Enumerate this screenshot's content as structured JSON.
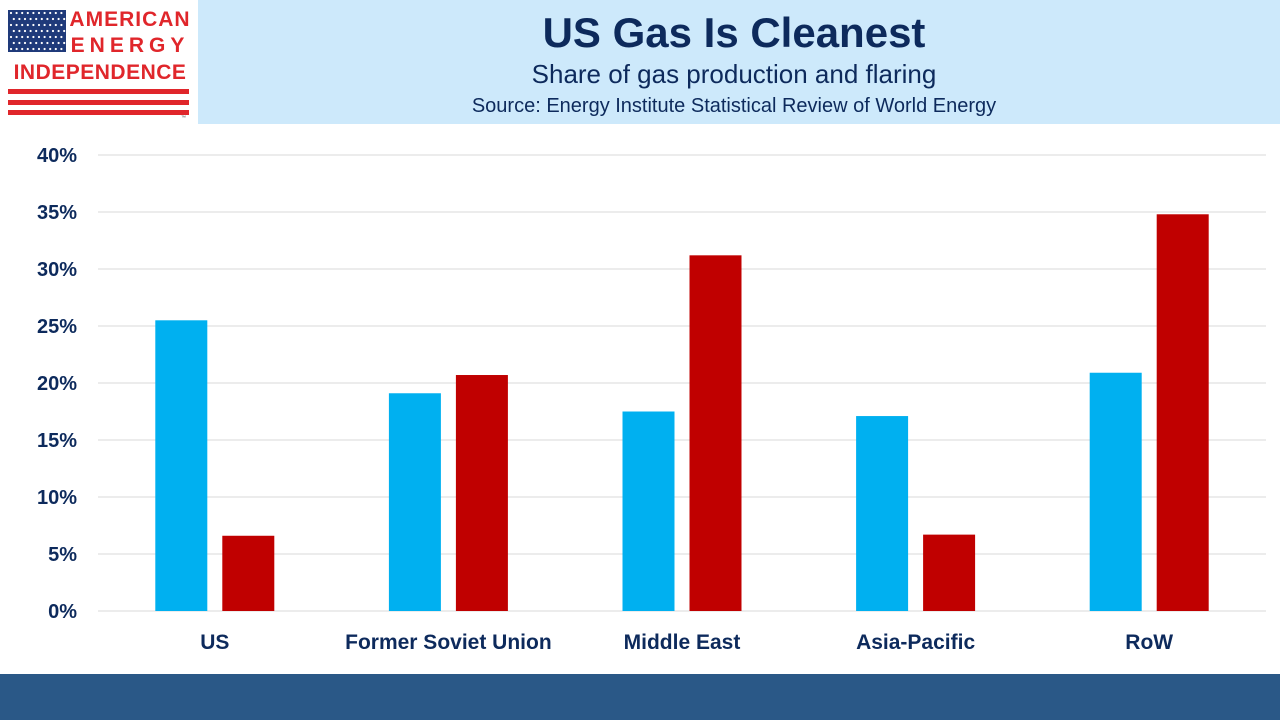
{
  "logo": {
    "line1": "AMERICAN",
    "line2": "ENERGY",
    "line3": "INDEPENDENCE",
    "trademark": "™"
  },
  "header": {
    "title": "US Gas Is Cleanest",
    "subtitle": "Share of gas production and flaring",
    "source": "Source: Energy Institute Statistical Review of World Energy"
  },
  "colors": {
    "header_bg": "#cde9fb",
    "title_text": "#0d2a5c",
    "logo_red": "#e0262b",
    "logo_navy": "#1f3a7a",
    "footer_bg": "#2a5887",
    "series_production": "#00b0f0",
    "series_flaring": "#c00000",
    "gridline": "#d9d9d9"
  },
  "chart_data": {
    "type": "bar",
    "title": "US Gas Is Cleanest",
    "subtitle": "Share of gas production and flaring",
    "xlabel": "",
    "ylabel": "",
    "categories": [
      "US",
      "Former Soviet Union",
      "Middle East",
      "Asia-Pacific",
      "RoW"
    ],
    "series": [
      {
        "color": "#00b0f0",
        "values": [
          25.5,
          19.1,
          17.5,
          17.1,
          20.9
        ]
      },
      {
        "color": "#c00000",
        "values": [
          6.6,
          20.7,
          31.2,
          6.7,
          34.8
        ]
      }
    ],
    "ylim": [
      0,
      40
    ],
    "yticks": [
      0,
      5,
      10,
      15,
      20,
      25,
      30,
      35,
      40
    ],
    "ytick_labels": [
      "0%",
      "5%",
      "10%",
      "15%",
      "20%",
      "25%",
      "30%",
      "35%",
      "40%"
    ],
    "grid": true,
    "legend": "none"
  }
}
